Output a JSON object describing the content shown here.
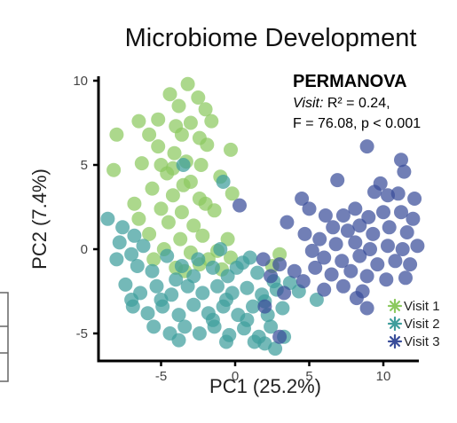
{
  "chart_data": {
    "type": "scatter",
    "title": "Microbiome Development",
    "xlabel": "PC1 (25.2%)",
    "ylabel": "PC2 (7.4%)",
    "xlim": [
      -9,
      12.5
    ],
    "ylim": [
      -6.5,
      10.5
    ],
    "xticks": [
      -5,
      0,
      5,
      10
    ],
    "yticks": [
      -5,
      0,
      5,
      10
    ],
    "grid": false,
    "legend_position": "bottom-right",
    "annotation": {
      "title": "PERMANOVA",
      "line1_label": "Visit:",
      "line1_value": "R² = 0.24,",
      "line2": "F = 76.08, p < 0.001"
    },
    "series": [
      {
        "name": "Visit 1",
        "color": "#8cc95f",
        "points": [
          [
            -3.2,
            9.8
          ],
          [
            -4.4,
            9.2
          ],
          [
            -2.5,
            9.0
          ],
          [
            -3.8,
            8.5
          ],
          [
            -2.0,
            8.3
          ],
          [
            -6.5,
            7.6
          ],
          [
            -5.2,
            7.7
          ],
          [
            -3.0,
            7.5
          ],
          [
            -1.6,
            7.6
          ],
          [
            -4.0,
            7.3
          ],
          [
            -8.0,
            6.8
          ],
          [
            -5.8,
            6.8
          ],
          [
            -3.6,
            6.8
          ],
          [
            -2.4,
            6.6
          ],
          [
            -5.2,
            6.1
          ],
          [
            -4.1,
            5.7
          ],
          [
            -1.9,
            6.2
          ],
          [
            -0.3,
            5.9
          ],
          [
            -6.3,
            5.1
          ],
          [
            -5.0,
            5.0
          ],
          [
            -3.3,
            5.2
          ],
          [
            -2.3,
            5.0
          ],
          [
            -8.2,
            4.7
          ],
          [
            -4.6,
            4.5
          ],
          [
            -3.0,
            4.0
          ],
          [
            -1.0,
            4.3
          ],
          [
            -5.6,
            3.6
          ],
          [
            -4.2,
            3.2
          ],
          [
            -2.4,
            3.0
          ],
          [
            -0.2,
            3.3
          ],
          [
            -5.0,
            2.4
          ],
          [
            -3.6,
            2.2
          ],
          [
            -1.4,
            2.3
          ],
          [
            -6.5,
            1.8
          ],
          [
            -4.5,
            1.6
          ],
          [
            -2.8,
            1.4
          ],
          [
            -5.8,
            0.9
          ],
          [
            -3.7,
            0.6
          ],
          [
            -2.2,
            0.8
          ],
          [
            -0.5,
            0.6
          ],
          [
            -4.8,
            0.0
          ],
          [
            -3.0,
            -0.2
          ],
          [
            -1.2,
            -0.1
          ],
          [
            -5.5,
            -0.6
          ],
          [
            -2.4,
            -0.9
          ],
          [
            -0.3,
            -0.5
          ],
          [
            -4.0,
            -1.1
          ],
          [
            -1.8,
            -0.6
          ],
          [
            -6.8,
            2.7
          ],
          [
            -3.5,
            3.8
          ],
          [
            -2.0,
            2.7
          ],
          [
            -4.2,
            4.8
          ],
          [
            2.5,
            -1.0
          ],
          [
            3.0,
            -0.3
          ],
          [
            -3.4,
            -1.3
          ],
          [
            -0.9,
            -1.2
          ]
        ]
      },
      {
        "name": "Visit 2",
        "color": "#3f9e9c",
        "points": [
          [
            -8.6,
            1.8
          ],
          [
            -7.6,
            1.3
          ],
          [
            -6.8,
            0.8
          ],
          [
            -7.8,
            0.4
          ],
          [
            -6.2,
            0.2
          ],
          [
            -8.0,
            -0.6
          ],
          [
            -6.6,
            -1.0
          ],
          [
            -5.6,
            -1.3
          ],
          [
            -4.6,
            -0.4
          ],
          [
            -3.6,
            -1.0
          ],
          [
            -2.5,
            -0.6
          ],
          [
            -1.5,
            -1.1
          ],
          [
            -0.5,
            -1.6
          ],
          [
            0.5,
            -0.8
          ],
          [
            1.5,
            -1.4
          ],
          [
            2.6,
            -1.9
          ],
          [
            -7.4,
            -2.1
          ],
          [
            -6.4,
            -2.6
          ],
          [
            -5.3,
            -2.2
          ],
          [
            -4.3,
            -2.7
          ],
          [
            -3.2,
            -2.2
          ],
          [
            -2.2,
            -2.6
          ],
          [
            -1.2,
            -2.2
          ],
          [
            -0.2,
            -2.6
          ],
          [
            0.8,
            -2.3
          ],
          [
            1.8,
            -2.7
          ],
          [
            2.8,
            -2.4
          ],
          [
            3.7,
            -2.0
          ],
          [
            -6.9,
            -3.4
          ],
          [
            -5.9,
            -3.8
          ],
          [
            -4.9,
            -3.4
          ],
          [
            -3.8,
            -3.9
          ],
          [
            -2.8,
            -3.3
          ],
          [
            -1.8,
            -3.8
          ],
          [
            -0.8,
            -3.4
          ],
          [
            0.2,
            -3.9
          ],
          [
            1.2,
            -3.4
          ],
          [
            2.2,
            -3.9
          ],
          [
            3.2,
            -3.5
          ],
          [
            -5.5,
            -4.6
          ],
          [
            -4.4,
            -5.0
          ],
          [
            -3.4,
            -4.6
          ],
          [
            -2.4,
            -5.0
          ],
          [
            -1.4,
            -4.6
          ],
          [
            -0.4,
            -5.1
          ],
          [
            0.6,
            -4.7
          ],
          [
            1.6,
            -5.2
          ],
          [
            2.4,
            -4.6
          ],
          [
            -3.8,
            -5.4
          ],
          [
            -0.6,
            -5.5
          ],
          [
            2.0,
            -5.6
          ],
          [
            2.7,
            -5.9
          ],
          [
            -1.0,
            0.0
          ],
          [
            0.1,
            -1.1
          ],
          [
            -7.0,
            -0.3
          ],
          [
            4.3,
            -2.5
          ],
          [
            5.5,
            -3.0
          ],
          [
            -4.0,
            -1.8
          ],
          [
            1.0,
            -0.5
          ],
          [
            -0.8,
            4.0
          ],
          [
            -3.5,
            5.0
          ],
          [
            1.3,
            -5.5
          ],
          [
            3.3,
            -5.2
          ],
          [
            -5.0,
            -3.0
          ],
          [
            -1.5,
            -4.2
          ],
          [
            0.8,
            -4.2
          ],
          [
            2.0,
            -3.1
          ],
          [
            -2.8,
            -1.6
          ],
          [
            -7.0,
            -3.0
          ],
          [
            -0.6,
            -3.0
          ]
        ]
      },
      {
        "name": "Visit 3",
        "color": "#3a4e9a",
        "points": [
          [
            8.9,
            6.1
          ],
          [
            11.2,
            5.3
          ],
          [
            11.4,
            4.6
          ],
          [
            6.9,
            4.1
          ],
          [
            9.4,
            3.4
          ],
          [
            10.3,
            3.2
          ],
          [
            4.5,
            3.0
          ],
          [
            9.8,
            3.9
          ],
          [
            11.0,
            3.3
          ],
          [
            12.1,
            3.0
          ],
          [
            5.0,
            2.4
          ],
          [
            6.1,
            2.0
          ],
          [
            7.3,
            2.0
          ],
          [
            8.1,
            2.4
          ],
          [
            9.0,
            1.9
          ],
          [
            10.0,
            2.2
          ],
          [
            11.2,
            2.2
          ],
          [
            12.0,
            1.8
          ],
          [
            0.3,
            2.6
          ],
          [
            3.5,
            1.6
          ],
          [
            6.6,
            1.3
          ],
          [
            7.6,
            1.1
          ],
          [
            8.4,
            1.4
          ],
          [
            9.3,
            0.9
          ],
          [
            10.4,
            1.3
          ],
          [
            11.6,
            1.0
          ],
          [
            4.7,
            0.9
          ],
          [
            5.7,
            0.6
          ],
          [
            6.8,
            0.3
          ],
          [
            8.1,
            0.4
          ],
          [
            9.1,
            0.0
          ],
          [
            10.3,
            0.2
          ],
          [
            11.3,
            0.0
          ],
          [
            12.3,
            0.2
          ],
          [
            5.2,
            -0.1
          ],
          [
            6.0,
            -0.5
          ],
          [
            7.2,
            -0.7
          ],
          [
            8.4,
            -0.4
          ],
          [
            9.6,
            -0.9
          ],
          [
            10.8,
            -0.7
          ],
          [
            11.8,
            -0.9
          ],
          [
            1.9,
            -0.6
          ],
          [
            3.0,
            -0.9
          ],
          [
            4.0,
            -1.3
          ],
          [
            5.4,
            -1.1
          ],
          [
            6.5,
            -1.5
          ],
          [
            7.8,
            -1.3
          ],
          [
            8.9,
            -1.6
          ],
          [
            10.2,
            -1.8
          ],
          [
            11.5,
            -1.7
          ],
          [
            2.4,
            -1.6
          ],
          [
            4.6,
            -1.9
          ],
          [
            6.0,
            -2.4
          ],
          [
            7.3,
            -2.2
          ],
          [
            8.6,
            -2.5
          ],
          [
            3.3,
            -2.6
          ],
          [
            8.2,
            -2.9
          ],
          [
            2.0,
            -3.4
          ],
          [
            8.9,
            -3.5
          ],
          [
            3.0,
            -5.2
          ]
        ]
      }
    ]
  }
}
